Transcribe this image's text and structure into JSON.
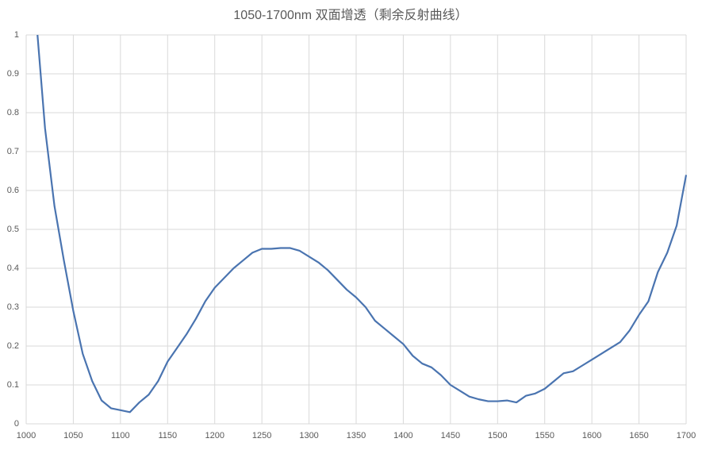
{
  "chart_data": {
    "type": "line",
    "title": "1050-1700nm 双面增透（剩余反射曲线）",
    "xlim": [
      1000,
      1700
    ],
    "xticks": [
      1000,
      1050,
      1100,
      1150,
      1200,
      1250,
      1300,
      1350,
      1400,
      1450,
      1500,
      1550,
      1600,
      1650,
      1700
    ],
    "ylim": [
      0,
      1
    ],
    "yticks": [
      0,
      0.1,
      0.2,
      0.3,
      0.4,
      0.5,
      0.6,
      0.7,
      0.8,
      0.9,
      1
    ],
    "grid": true,
    "series": [
      {
        "color": "#4a74b0",
        "x": [
          1012,
          1020,
          1030,
          1040,
          1050,
          1060,
          1070,
          1080,
          1090,
          1100,
          1110,
          1120,
          1130,
          1140,
          1150,
          1160,
          1170,
          1180,
          1190,
          1200,
          1210,
          1220,
          1230,
          1240,
          1250,
          1260,
          1270,
          1280,
          1290,
          1300,
          1310,
          1320,
          1330,
          1340,
          1350,
          1360,
          1370,
          1380,
          1390,
          1400,
          1410,
          1420,
          1430,
          1440,
          1450,
          1460,
          1470,
          1480,
          1490,
          1500,
          1510,
          1520,
          1530,
          1540,
          1550,
          1560,
          1570,
          1580,
          1590,
          1600,
          1610,
          1620,
          1630,
          1640,
          1650,
          1660,
          1670,
          1680,
          1690,
          1700
        ],
        "values": [
          1.0,
          0.76,
          0.56,
          0.42,
          0.29,
          0.18,
          0.11,
          0.06,
          0.04,
          0.035,
          0.03,
          0.055,
          0.075,
          0.11,
          0.16,
          0.195,
          0.23,
          0.27,
          0.315,
          0.35,
          0.375,
          0.4,
          0.42,
          0.44,
          0.45,
          0.45,
          0.452,
          0.452,
          0.445,
          0.43,
          0.415,
          0.395,
          0.37,
          0.345,
          0.325,
          0.3,
          0.265,
          0.245,
          0.225,
          0.205,
          0.175,
          0.155,
          0.145,
          0.125,
          0.1,
          0.085,
          0.07,
          0.063,
          0.058,
          0.058,
          0.06,
          0.055,
          0.072,
          0.078,
          0.09,
          0.11,
          0.13,
          0.135,
          0.15,
          0.165,
          0.18,
          0.195,
          0.21,
          0.24,
          0.28,
          0.315,
          0.39,
          0.44,
          0.51,
          0.64
        ]
      }
    ]
  }
}
